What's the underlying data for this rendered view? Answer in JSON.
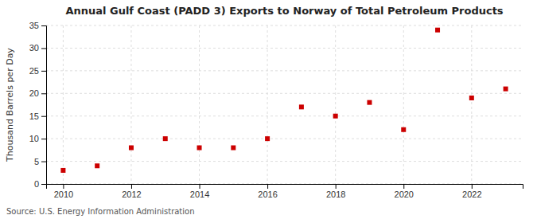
{
  "chart_data": {
    "type": "scatter",
    "title": "Annual Gulf Coast (PADD 3) Exports to Norway of Total Petroleum Products",
    "y_label": "Thousand Barrels per Day",
    "source": "Source: U.S. Energy Information Administration",
    "x": [
      2010,
      2011,
      2012,
      2013,
      2014,
      2015,
      2016,
      2017,
      2018,
      2019,
      2020,
      2021,
      2022,
      2023
    ],
    "values": [
      3.0,
      4.0,
      8.0,
      10.0,
      8.0,
      8.0,
      10.0,
      17.0,
      15.0,
      18.0,
      12.0,
      34.0,
      19.0,
      21.0
    ],
    "color": "#cc0000",
    "marker": "square",
    "grid": true,
    "xlim": [
      2009.5,
      2023.5
    ],
    "xticks": [
      2010,
      2012,
      2014,
      2016,
      2018,
      2020,
      2022
    ],
    "ylim": [
      0,
      35
    ],
    "yticks": [
      0,
      5,
      10,
      15,
      20,
      25,
      30,
      35
    ]
  }
}
